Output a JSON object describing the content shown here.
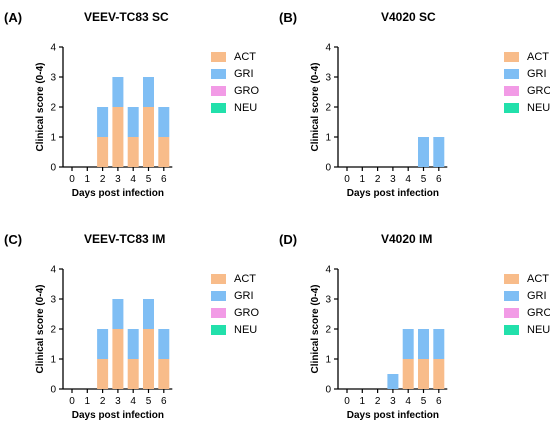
{
  "colors": {
    "ACT": "#f8bc8a",
    "GRI": "#7fbef4",
    "GRO": "#f29be6",
    "NEU": "#22e0ab"
  },
  "legend": [
    "ACT",
    "GRI",
    "GRO",
    "NEU"
  ],
  "chart_data": [
    {
      "panel": "(A)",
      "type": "bar",
      "stacked": true,
      "title": "VEEV-TC83 SC",
      "xlabel": "Days post infection",
      "ylabel": "Clinical score (0-4)",
      "ylim": [
        0,
        4
      ],
      "yticks": [
        "0",
        "1",
        "2",
        "3",
        "4"
      ],
      "categories": [
        "0",
        "1",
        "2",
        "3",
        "4",
        "5",
        "6"
      ],
      "series": [
        {
          "name": "ACT",
          "values": [
            0,
            0,
            1,
            2,
            1,
            2,
            1
          ]
        },
        {
          "name": "GRI",
          "values": [
            0,
            0,
            1,
            1,
            1,
            1,
            1
          ]
        },
        {
          "name": "GRO",
          "values": [
            0,
            0,
            0,
            0,
            0,
            0,
            0
          ]
        },
        {
          "name": "NEU",
          "values": [
            0,
            0,
            0,
            0,
            0,
            0,
            0
          ]
        }
      ]
    },
    {
      "panel": "(B)",
      "type": "bar",
      "stacked": true,
      "title": "V4020 SC",
      "xlabel": "Days post infection",
      "ylabel": "Clinical score (0-4)",
      "ylim": [
        0,
        4
      ],
      "yticks": [
        "0",
        "1",
        "2",
        "3",
        "4"
      ],
      "categories": [
        "0",
        "1",
        "2",
        "3",
        "4",
        "5",
        "6"
      ],
      "series": [
        {
          "name": "ACT",
          "values": [
            0,
            0,
            0,
            0,
            0,
            0,
            0
          ]
        },
        {
          "name": "GRI",
          "values": [
            0,
            0,
            0,
            0,
            0,
            1,
            1
          ]
        },
        {
          "name": "GRO",
          "values": [
            0,
            0,
            0,
            0,
            0,
            0,
            0
          ]
        },
        {
          "name": "NEU",
          "values": [
            0,
            0,
            0,
            0,
            0,
            0,
            0
          ]
        }
      ]
    },
    {
      "panel": "(C)",
      "type": "bar",
      "stacked": true,
      "title": "VEEV-TC83 IM",
      "xlabel": "Days post infection",
      "ylabel": "Clinical score (0-4)",
      "ylim": [
        0,
        4
      ],
      "yticks": [
        "0",
        "1",
        "2",
        "3",
        "4"
      ],
      "categories": [
        "0",
        "1",
        "2",
        "3",
        "4",
        "5",
        "6"
      ],
      "series": [
        {
          "name": "ACT",
          "values": [
            0,
            0,
            1,
            2,
            1,
            2,
            1
          ]
        },
        {
          "name": "GRI",
          "values": [
            0,
            0,
            1,
            1,
            1,
            1,
            1
          ]
        },
        {
          "name": "GRO",
          "values": [
            0,
            0,
            0,
            0,
            0,
            0,
            0
          ]
        },
        {
          "name": "NEU",
          "values": [
            0,
            0,
            0,
            0,
            0,
            0,
            0
          ]
        }
      ]
    },
    {
      "panel": "(D)",
      "type": "bar",
      "stacked": true,
      "title": "V4020 IM",
      "xlabel": "Days post infection",
      "ylabel": "Clinical score (0-4)",
      "ylim": [
        0,
        4
      ],
      "yticks": [
        "0",
        "1",
        "2",
        "3",
        "4"
      ],
      "categories": [
        "0",
        "1",
        "2",
        "3",
        "4",
        "5",
        "6"
      ],
      "series": [
        {
          "name": "ACT",
          "values": [
            0,
            0,
            0,
            0,
            1,
            1,
            1
          ]
        },
        {
          "name": "GRI",
          "values": [
            0,
            0,
            0,
            0.5,
            1,
            1,
            1
          ]
        },
        {
          "name": "GRO",
          "values": [
            0,
            0,
            0,
            0,
            0,
            0,
            0
          ]
        },
        {
          "name": "NEU",
          "values": [
            0,
            0,
            0,
            0,
            0,
            0,
            0
          ]
        }
      ]
    }
  ]
}
